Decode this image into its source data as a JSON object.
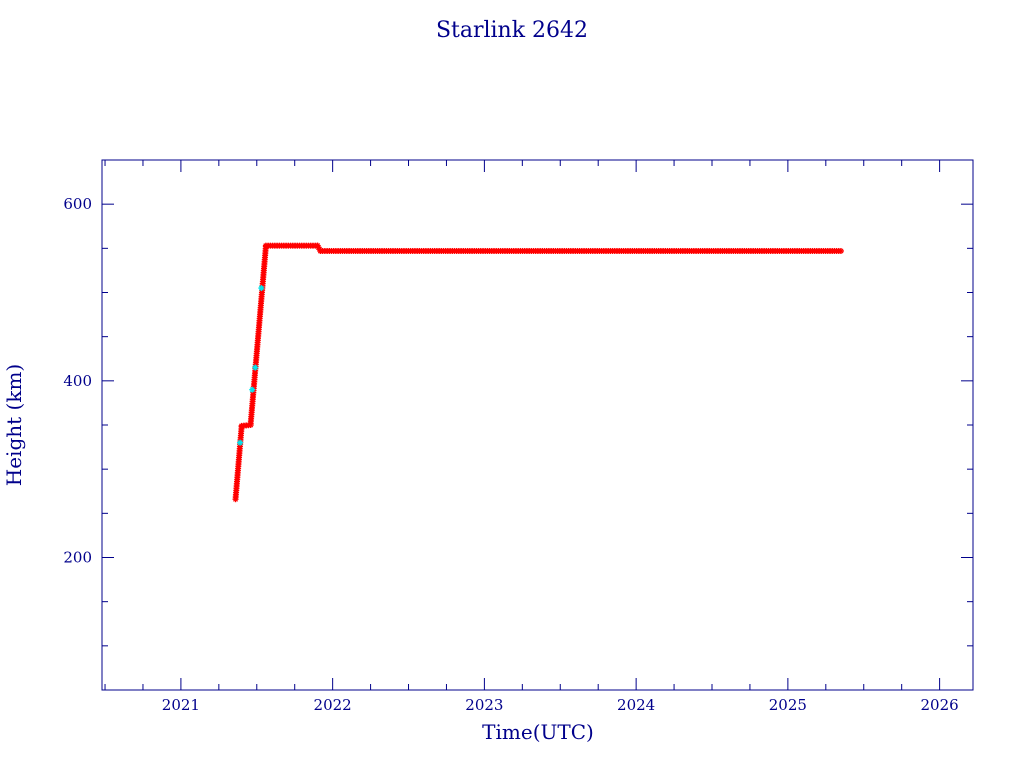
{
  "chart_data": {
    "type": "scatter",
    "title": "Starlink 2642",
    "xlabel": "Time(UTC)",
    "ylabel": "Height (km)",
    "xlim": [
      2020.48,
      2026.22
    ],
    "ylim": [
      50,
      650
    ],
    "xticks": [
      2021,
      2022,
      2023,
      2024,
      2025,
      2026
    ],
    "xtick_labels": [
      "2021",
      "2022",
      "2023",
      "2024",
      "2025",
      "2026"
    ],
    "yticks": [
      200,
      400,
      600
    ],
    "ytick_labels": [
      "200",
      "400",
      "600"
    ],
    "grid": false,
    "colors": {
      "axis": "#00008b",
      "points_primary": "#ff0000",
      "points_secondary": "#00e5ee"
    },
    "series": [
      {
        "color": "#ff0000",
        "segments": [
          {
            "x": [
              2021.36,
              2021.4
            ],
            "y": [
              266,
              348
            ]
          },
          {
            "x": [
              2021.4,
              2021.46
            ],
            "y": [
              349,
              350
            ]
          },
          {
            "x": [
              2021.46,
              2021.56
            ],
            "y": [
              352,
              552
            ]
          },
          {
            "x": [
              2021.56,
              2021.9
            ],
            "y": [
              553,
              553
            ]
          },
          {
            "x": [
              2021.9,
              2021.92
            ],
            "y": [
              553,
              547
            ]
          },
          {
            "x": [
              2021.92,
              2025.35
            ],
            "y": [
              547,
              547
            ]
          }
        ]
      },
      {
        "color": "#00e5ee",
        "points": [
          {
            "x": 2021.39,
            "y": 330
          },
          {
            "x": 2021.47,
            "y": 390
          },
          {
            "x": 2021.49,
            "y": 415
          },
          {
            "x": 2021.53,
            "y": 505
          }
        ]
      }
    ]
  }
}
